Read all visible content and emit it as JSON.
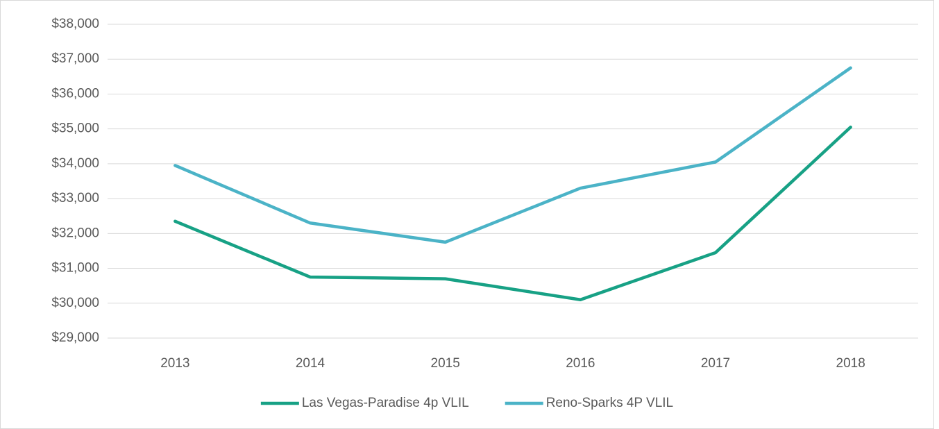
{
  "chart_data": {
    "type": "line",
    "categories": [
      "2013",
      "2014",
      "2015",
      "2016",
      "2017",
      "2018"
    ],
    "series": [
      {
        "name": "Las Vegas-Paradise 4p VLIL",
        "color": "#17a185",
        "values": [
          32350,
          30750,
          30700,
          30100,
          31450,
          35050
        ]
      },
      {
        "name": "Reno-Sparks 4P VLIL",
        "color": "#4bb3c7",
        "values": [
          33950,
          32300,
          31750,
          33300,
          34050,
          36750
        ]
      }
    ],
    "ylim": [
      29000,
      38000
    ],
    "yticks": [
      {
        "value": 29000,
        "label": "$29,000"
      },
      {
        "value": 30000,
        "label": "$30,000"
      },
      {
        "value": 31000,
        "label": "$31,000"
      },
      {
        "value": 32000,
        "label": "$32,000"
      },
      {
        "value": 33000,
        "label": "$33,000"
      },
      {
        "value": 34000,
        "label": "$34,000"
      },
      {
        "value": 35000,
        "label": "$35,000"
      },
      {
        "value": 36000,
        "label": "$36,000"
      },
      {
        "value": 37000,
        "label": "$37,000"
      },
      {
        "value": 38000,
        "label": "$38,000"
      }
    ],
    "grid": true,
    "legend": "bottom"
  }
}
